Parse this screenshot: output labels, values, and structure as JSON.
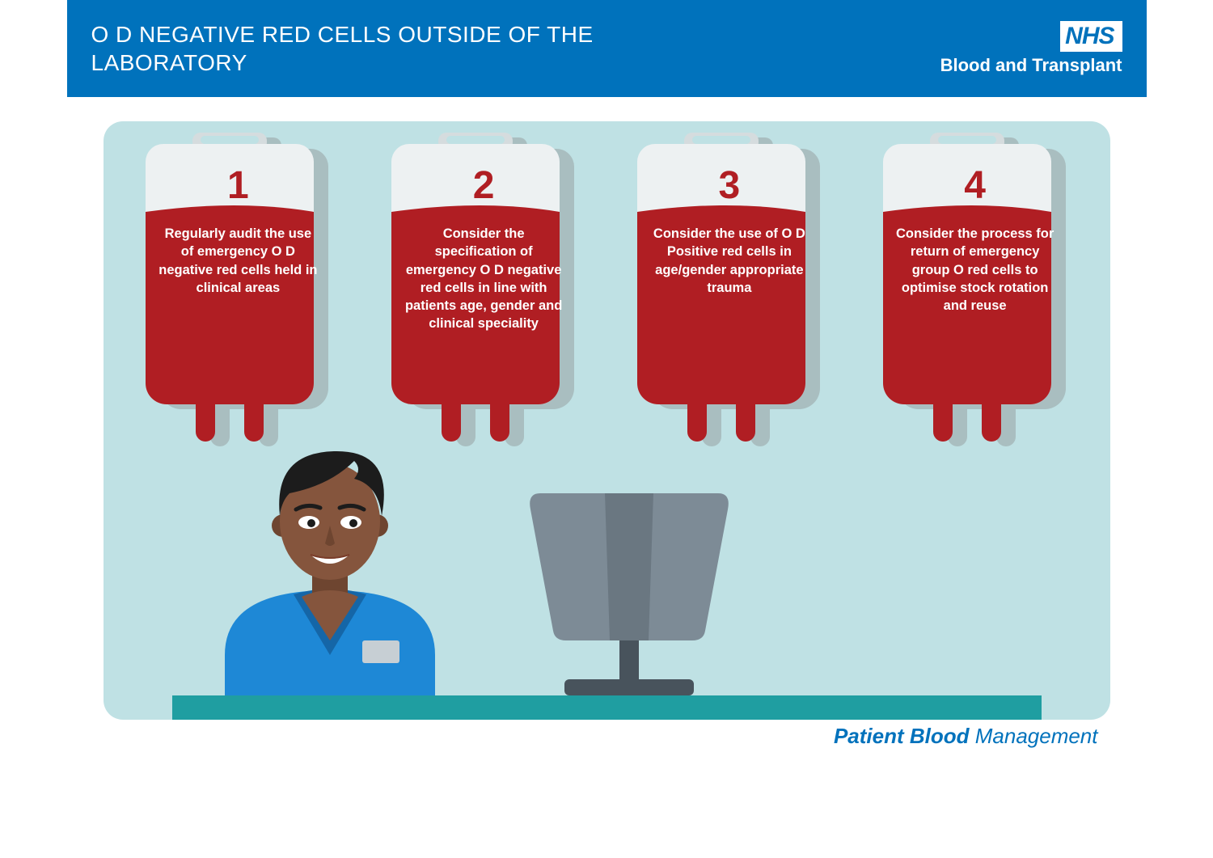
{
  "colors": {
    "header_bg": "#0072bc",
    "panel_bg": "#bfe1e4",
    "blood": "#b01e23",
    "bag_shadow": "#a9bec0",
    "bag_face": "#edf1f2",
    "bag_outline": "#d5dcde",
    "desk": "#1f9ea1",
    "monitor_body": "#7d8b96",
    "monitor_dark": "#48535c",
    "skin": "#85553d",
    "skin_dark": "#6e4530",
    "hair": "#1c1c1c",
    "scrub": "#1e88d6",
    "scrub_dark": "#1566a7",
    "badge": "#c7cfd4"
  },
  "header": {
    "title": "O D NEGATIVE RED CELLS OUTSIDE OF THE LABORATORY",
    "logo_main": "NHS",
    "logo_sub": "Blood and Transplant"
  },
  "bags": [
    {
      "num": "1",
      "text": "Regularly audit the use of emergency O D negative red cells held in clinical areas"
    },
    {
      "num": "2",
      "text": "Consider the specification of emergency O D negative red cells in line with patients age, gender and clinical speciality"
    },
    {
      "num": "3",
      "text": "Consider the use of O D Positive red cells in age/gender appropriate trauma"
    },
    {
      "num": "4",
      "text": "Consider the process for return of emergency group O red cells to optimise stock rotation and reuse"
    }
  ],
  "footer": {
    "bold": "Patient Blood ",
    "light": "Management"
  }
}
